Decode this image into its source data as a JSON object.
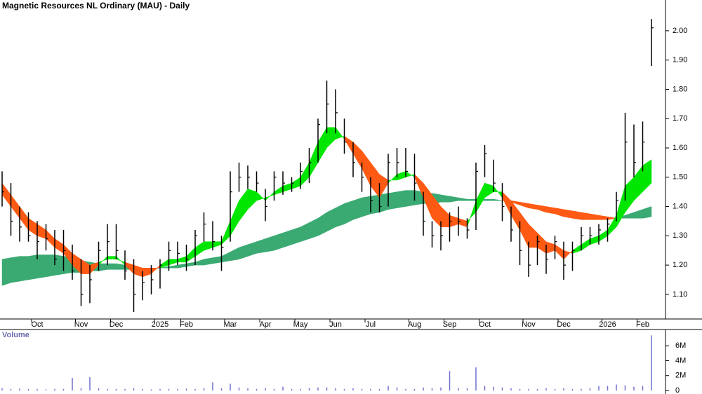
{
  "chart_data": [
    {
      "type": "ohlc",
      "title": "Magnetic Resources NL Ordinary (MAU) - Daily",
      "categories": [
        null,
        null,
        null,
        null,
        "Oct",
        null,
        null,
        null,
        null,
        "Nov",
        null,
        null,
        null,
        "Dec",
        null,
        null,
        null,
        null,
        "2025",
        null,
        null,
        "Feb",
        null,
        null,
        null,
        null,
        "Mar",
        null,
        null,
        null,
        "Apr",
        null,
        null,
        null,
        "May",
        null,
        null,
        null,
        "Jun",
        null,
        null,
        null,
        "Jul",
        null,
        null,
        null,
        null,
        "Aug",
        null,
        null,
        null,
        "Sep",
        null,
        null,
        null,
        "Oct",
        null,
        null,
        null,
        null,
        "Nov",
        null,
        null,
        null,
        "Dec",
        null,
        null,
        null,
        null,
        "2026",
        null,
        null,
        null,
        "Feb",
        null
      ],
      "high": [
        1.52,
        1.48,
        1.4,
        1.38,
        1.35,
        1.34,
        1.32,
        1.32,
        1.27,
        1.22,
        1.2,
        1.28,
        1.34,
        1.34,
        1.25,
        1.22,
        1.18,
        1.2,
        1.22,
        1.28,
        1.28,
        1.27,
        1.32,
        1.38,
        1.35,
        1.3,
        1.52,
        1.55,
        1.54,
        1.52,
        1.46,
        1.52,
        1.52,
        1.5,
        1.55,
        1.6,
        1.7,
        1.83,
        1.8,
        1.7,
        1.62,
        1.55,
        1.5,
        1.48,
        1.58,
        1.6,
        1.6,
        1.58,
        1.45,
        1.35,
        1.35,
        1.38,
        1.4,
        1.36,
        1.55,
        1.61,
        1.56,
        1.48,
        1.4,
        1.35,
        1.28,
        1.3,
        1.27,
        1.3,
        1.28,
        1.28,
        1.33,
        1.33,
        1.34,
        1.36,
        1.45,
        1.72,
        1.68,
        1.69,
        2.04
      ],
      "low": [
        1.4,
        1.3,
        1.28,
        1.28,
        1.22,
        1.25,
        1.2,
        1.18,
        1.15,
        1.06,
        1.07,
        1.18,
        1.2,
        1.22,
        1.15,
        1.04,
        1.08,
        1.1,
        1.12,
        1.18,
        1.2,
        1.18,
        1.2,
        1.28,
        1.25,
        1.18,
        1.28,
        1.45,
        1.46,
        1.45,
        1.35,
        1.42,
        1.44,
        1.45,
        1.46,
        1.48,
        1.55,
        1.65,
        1.65,
        1.58,
        1.5,
        1.45,
        1.38,
        1.38,
        1.4,
        1.5,
        1.5,
        1.42,
        1.3,
        1.26,
        1.25,
        1.28,
        1.3,
        1.29,
        1.32,
        1.5,
        1.45,
        1.35,
        1.28,
        1.2,
        1.16,
        1.2,
        1.17,
        1.22,
        1.15,
        1.18,
        1.25,
        1.27,
        1.27,
        1.28,
        1.35,
        1.42,
        1.5,
        1.52,
        1.88
      ],
      "close": [
        1.45,
        1.35,
        1.33,
        1.3,
        1.28,
        1.29,
        1.22,
        1.25,
        1.18,
        1.1,
        1.15,
        1.25,
        1.28,
        1.25,
        1.18,
        1.1,
        1.14,
        1.15,
        1.2,
        1.25,
        1.24,
        1.22,
        1.3,
        1.34,
        1.28,
        1.26,
        1.45,
        1.5,
        1.5,
        1.48,
        1.4,
        1.5,
        1.48,
        1.48,
        1.52,
        1.55,
        1.68,
        1.75,
        1.72,
        1.62,
        1.55,
        1.5,
        1.42,
        1.4,
        1.55,
        1.55,
        1.52,
        1.48,
        1.35,
        1.3,
        1.3,
        1.35,
        1.35,
        1.32,
        1.52,
        1.58,
        1.48,
        1.4,
        1.32,
        1.25,
        1.2,
        1.28,
        1.22,
        1.28,
        1.2,
        1.25,
        1.3,
        1.3,
        1.32,
        1.34,
        1.42,
        1.62,
        1.55,
        1.62,
        2.01
      ],
      "color": "#000000",
      "ribbons": [
        {
          "values_a": [
            1.22,
            1.225,
            1.23,
            1.23,
            1.235,
            1.235,
            1.235,
            1.23,
            1.225,
            1.215,
            1.21,
            1.205,
            1.205,
            1.205,
            1.2,
            1.195,
            1.19,
            1.19,
            1.19,
            1.195,
            1.2,
            1.205,
            1.21,
            1.22,
            1.225,
            1.23,
            1.245,
            1.26,
            1.27,
            1.28,
            1.29,
            1.3,
            1.31,
            1.32,
            1.33,
            1.345,
            1.36,
            1.38,
            1.395,
            1.41,
            1.42,
            1.43,
            1.435,
            1.44,
            1.445,
            1.45,
            1.455,
            1.455,
            1.45,
            1.445,
            1.44,
            1.435,
            1.43,
            1.425,
            1.425,
            1.425,
            1.425,
            1.42,
            1.415,
            1.405,
            1.395,
            1.39,
            1.38,
            1.375,
            1.365,
            1.36,
            1.355,
            1.355,
            1.355,
            1.355,
            1.36,
            1.37,
            1.38,
            1.39,
            1.4
          ],
          "values_b": [
            1.13,
            1.14,
            1.145,
            1.15,
            1.155,
            1.16,
            1.165,
            1.17,
            1.175,
            1.175,
            1.18,
            1.18,
            1.185,
            1.185,
            1.185,
            1.185,
            1.185,
            1.185,
            1.19,
            1.19,
            1.19,
            1.195,
            1.2,
            1.2,
            1.205,
            1.21,
            1.215,
            1.22,
            1.23,
            1.24,
            1.245,
            1.25,
            1.26,
            1.27,
            1.28,
            1.29,
            1.3,
            1.315,
            1.33,
            1.34,
            1.355,
            1.365,
            1.375,
            1.38,
            1.39,
            1.395,
            1.4,
            1.405,
            1.41,
            1.41,
            1.415,
            1.415,
            1.42,
            1.42,
            1.42,
            1.42,
            1.42,
            1.42,
            1.42,
            1.415,
            1.41,
            1.405,
            1.4,
            1.395,
            1.39,
            1.385,
            1.38,
            1.375,
            1.37,
            1.365,
            1.36,
            1.36,
            1.36,
            1.36,
            1.365
          ],
          "up_color": "#3aaa72",
          "down_color": "#ff5a14"
        },
        {
          "values_a": [
            1.44,
            1.4,
            1.36,
            1.32,
            1.3,
            1.29,
            1.26,
            1.24,
            1.2,
            1.17,
            1.17,
            1.2,
            1.23,
            1.23,
            1.2,
            1.17,
            1.16,
            1.17,
            1.2,
            1.22,
            1.22,
            1.23,
            1.26,
            1.28,
            1.28,
            1.28,
            1.35,
            1.42,
            1.46,
            1.45,
            1.42,
            1.45,
            1.47,
            1.48,
            1.5,
            1.55,
            1.62,
            1.67,
            1.67,
            1.63,
            1.58,
            1.53,
            1.47,
            1.43,
            1.48,
            1.51,
            1.52,
            1.5,
            1.43,
            1.36,
            1.33,
            1.33,
            1.34,
            1.33,
            1.42,
            1.48,
            1.47,
            1.43,
            1.37,
            1.32,
            1.26,
            1.26,
            1.24,
            1.25,
            1.22,
            1.25,
            1.27,
            1.29,
            1.3,
            1.32,
            1.37,
            1.47,
            1.5,
            1.54,
            1.56
          ],
          "values_b": [
            1.48,
            1.44,
            1.4,
            1.36,
            1.34,
            1.32,
            1.29,
            1.27,
            1.24,
            1.22,
            1.2,
            1.21,
            1.22,
            1.22,
            1.21,
            1.2,
            1.19,
            1.19,
            1.19,
            1.2,
            1.21,
            1.21,
            1.23,
            1.25,
            1.26,
            1.27,
            1.3,
            1.35,
            1.39,
            1.42,
            1.43,
            1.44,
            1.45,
            1.46,
            1.47,
            1.5,
            1.55,
            1.6,
            1.63,
            1.64,
            1.62,
            1.59,
            1.55,
            1.51,
            1.49,
            1.49,
            1.5,
            1.51,
            1.48,
            1.44,
            1.4,
            1.37,
            1.36,
            1.35,
            1.38,
            1.43,
            1.45,
            1.45,
            1.42,
            1.38,
            1.34,
            1.31,
            1.28,
            1.27,
            1.25,
            1.24,
            1.25,
            1.27,
            1.28,
            1.3,
            1.33,
            1.38,
            1.42,
            1.45,
            1.48
          ],
          "up_color": "#00e600",
          "down_color": "#ff5a14"
        }
      ],
      "ylim": [
        1.016,
        2.105
      ],
      "yticks": [
        {
          "value": 1.1,
          "label": "1.10"
        },
        {
          "value": 1.2,
          "label": "1.20"
        },
        {
          "value": 1.3,
          "label": "1.30"
        },
        {
          "value": 1.4,
          "label": "1.40"
        },
        {
          "value": 1.5,
          "label": "1.50"
        },
        {
          "value": 1.6,
          "label": "1.60"
        },
        {
          "value": 1.7,
          "label": "1.70"
        },
        {
          "value": 1.8,
          "label": "1.80"
        },
        {
          "value": 1.9,
          "label": "1.90"
        },
        {
          "value": 2,
          "label": "2.00"
        }
      ]
    },
    {
      "type": "bar",
      "title": "Volume",
      "values": [
        300000,
        200000,
        250000,
        200000,
        200000,
        150000,
        200000,
        200000,
        1700000,
        300000,
        1800000,
        300000,
        200000,
        200000,
        200000,
        300000,
        200000,
        150000,
        200000,
        200000,
        200000,
        250000,
        200000,
        300000,
        1100000,
        300000,
        900000,
        400000,
        300000,
        200000,
        300000,
        200000,
        500000,
        200000,
        200000,
        300000,
        400000,
        400000,
        300000,
        200000,
        300000,
        200000,
        200000,
        200000,
        600000,
        400000,
        200000,
        200000,
        400000,
        300000,
        400000,
        2600000,
        300000,
        300000,
        3100000,
        600000,
        500000,
        400000,
        300000,
        200000,
        200000,
        200000,
        300000,
        200000,
        300000,
        200000,
        200000,
        300000,
        600000,
        600000,
        800000,
        700000,
        500000,
        600000,
        7400000
      ],
      "color": "#7070d0",
      "ylim": [
        0,
        8000000
      ],
      "yticks": [
        0,
        {
          "value": 2000000,
          "label": "2M"
        },
        {
          "value": 4000000,
          "label": "4M"
        },
        {
          "value": 6000000,
          "label": "6M"
        }
      ]
    }
  ]
}
